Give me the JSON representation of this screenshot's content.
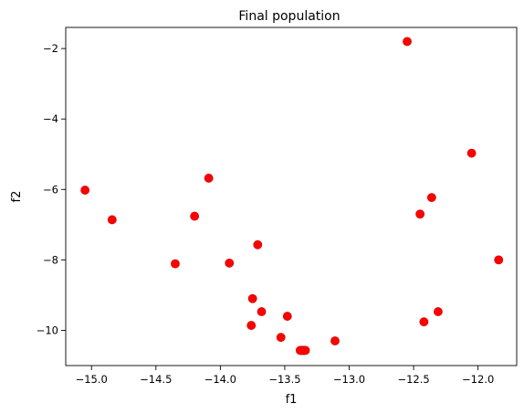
{
  "chart_data": {
    "type": "scatter",
    "title": "Final population",
    "xlabel": "f1",
    "ylabel": "f2",
    "xlim": [
      -15.2,
      -11.7
    ],
    "ylim": [
      -11.0,
      -1.4
    ],
    "xticks": [
      -15.0,
      -14.5,
      -14.0,
      -13.5,
      -13.0,
      -12.5,
      -12.0
    ],
    "xtick_labels": [
      "−15.0",
      "−14.5",
      "−14.0",
      "−13.5",
      "−13.0",
      "−12.5",
      "−12.0"
    ],
    "yticks": [
      -10,
      -8,
      -6,
      -4,
      -2
    ],
    "ytick_labels": [
      "−10",
      "−8",
      "−6",
      "−4",
      "−2"
    ],
    "grid": false,
    "marker_color": "#ff0000",
    "marker_edge_color": "#cc0000",
    "points": [
      {
        "x": -12.55,
        "y": -1.8
      },
      {
        "x": -12.05,
        "y": -4.97
      },
      {
        "x": -15.05,
        "y": -6.02
      },
      {
        "x": -14.84,
        "y": -6.86
      },
      {
        "x": -14.09,
        "y": -5.68
      },
      {
        "x": -14.2,
        "y": -6.76
      },
      {
        "x": -12.36,
        "y": -6.23
      },
      {
        "x": -12.45,
        "y": -6.7
      },
      {
        "x": -13.71,
        "y": -7.57
      },
      {
        "x": -14.35,
        "y": -8.11
      },
      {
        "x": -13.93,
        "y": -8.09
      },
      {
        "x": -11.84,
        "y": -8.0
      },
      {
        "x": -13.75,
        "y": -9.1
      },
      {
        "x": -13.68,
        "y": -9.47
      },
      {
        "x": -13.76,
        "y": -9.86
      },
      {
        "x": -13.48,
        "y": -9.6
      },
      {
        "x": -13.53,
        "y": -10.2
      },
      {
        "x": -13.11,
        "y": -10.3
      },
      {
        "x": -12.42,
        "y": -9.76
      },
      {
        "x": -12.31,
        "y": -9.47
      },
      {
        "x": -13.36,
        "y": -10.57
      },
      {
        "x": -13.35,
        "y": -10.57
      },
      {
        "x": -13.37,
        "y": -10.57
      },
      {
        "x": -13.34,
        "y": -10.57
      },
      {
        "x": -13.38,
        "y": -10.57
      }
    ]
  }
}
